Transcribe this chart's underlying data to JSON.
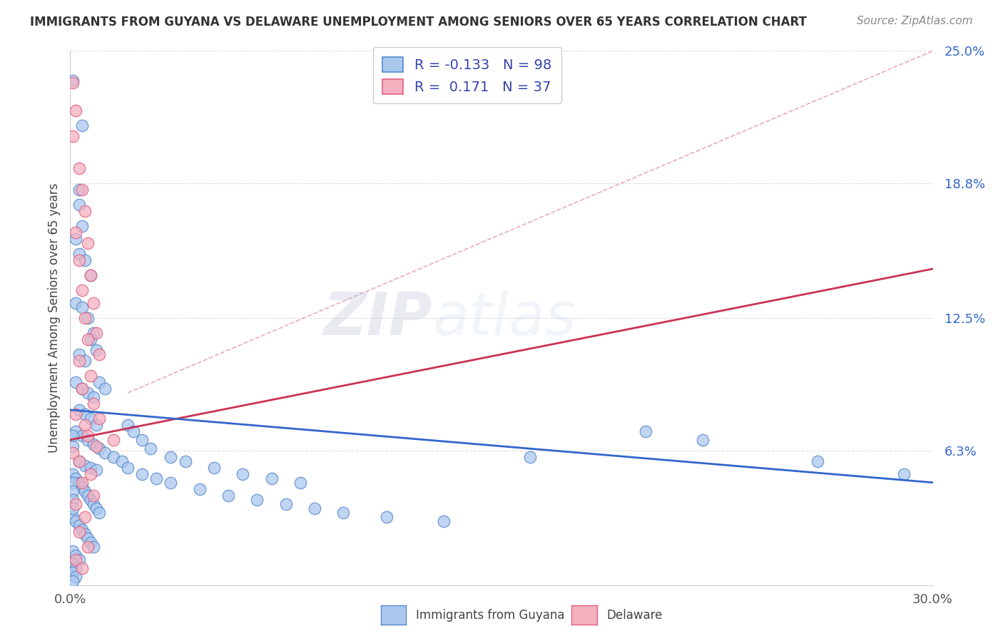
{
  "title": "IMMIGRANTS FROM GUYANA VS DELAWARE UNEMPLOYMENT AMONG SENIORS OVER 65 YEARS CORRELATION CHART",
  "source": "Source: ZipAtlas.com",
  "ylabel": "Unemployment Among Seniors over 65 years",
  "x_label_blue": "Immigrants from Guyana",
  "x_label_pink": "Delaware",
  "xlim": [
    0.0,
    0.3
  ],
  "ylim": [
    0.0,
    0.25
  ],
  "yticks": [
    0.0,
    0.063,
    0.125,
    0.188,
    0.25
  ],
  "ytick_labels": [
    "",
    "6.3%",
    "12.5%",
    "18.8%",
    "25.0%"
  ],
  "xtick_labels": [
    "0.0%",
    "30.0%"
  ],
  "blue_fill": "#aac8ee",
  "blue_edge": "#5588cc",
  "pink_fill": "#f5b0c0",
  "pink_edge": "#e06080",
  "blue_line_color": "#3366cc",
  "pink_line_color": "#cc3355",
  "dash_line_color": "#e08898",
  "watermark_zip": "ZIP",
  "watermark_atlas": "atlas",
  "background_color": "#ffffff",
  "grid_color": "#dddddd",
  "blue_trend_x": [
    0.0,
    0.3
  ],
  "blue_trend_y": [
    0.082,
    0.048
  ],
  "pink_trend_x": [
    0.0,
    0.3
  ],
  "pink_trend_y": [
    0.068,
    0.148
  ],
  "dash_trend_x": [
    0.02,
    0.3
  ],
  "dash_trend_y": [
    0.09,
    0.25
  ],
  "blue_scatter": [
    [
      0.001,
      0.236
    ],
    [
      0.004,
      0.215
    ],
    [
      0.003,
      0.185
    ],
    [
      0.002,
      0.162
    ],
    [
      0.003,
      0.155
    ],
    [
      0.003,
      0.178
    ],
    [
      0.004,
      0.168
    ],
    [
      0.005,
      0.152
    ],
    [
      0.007,
      0.145
    ],
    [
      0.002,
      0.132
    ],
    [
      0.004,
      0.13
    ],
    [
      0.006,
      0.125
    ],
    [
      0.008,
      0.118
    ],
    [
      0.003,
      0.108
    ],
    [
      0.005,
      0.105
    ],
    [
      0.007,
      0.115
    ],
    [
      0.009,
      0.11
    ],
    [
      0.002,
      0.095
    ],
    [
      0.004,
      0.092
    ],
    [
      0.006,
      0.09
    ],
    [
      0.008,
      0.088
    ],
    [
      0.01,
      0.095
    ],
    [
      0.012,
      0.092
    ],
    [
      0.003,
      0.082
    ],
    [
      0.005,
      0.08
    ],
    [
      0.007,
      0.078
    ],
    [
      0.009,
      0.075
    ],
    [
      0.002,
      0.072
    ],
    [
      0.004,
      0.07
    ],
    [
      0.006,
      0.068
    ],
    [
      0.008,
      0.066
    ],
    [
      0.01,
      0.064
    ],
    [
      0.012,
      0.062
    ],
    [
      0.015,
      0.06
    ],
    [
      0.018,
      0.058
    ],
    [
      0.003,
      0.058
    ],
    [
      0.005,
      0.056
    ],
    [
      0.007,
      0.055
    ],
    [
      0.009,
      0.054
    ],
    [
      0.001,
      0.052
    ],
    [
      0.002,
      0.05
    ],
    [
      0.003,
      0.048
    ],
    [
      0.004,
      0.046
    ],
    [
      0.005,
      0.044
    ],
    [
      0.006,
      0.042
    ],
    [
      0.007,
      0.04
    ],
    [
      0.008,
      0.038
    ],
    [
      0.009,
      0.036
    ],
    [
      0.01,
      0.034
    ],
    [
      0.001,
      0.032
    ],
    [
      0.002,
      0.03
    ],
    [
      0.003,
      0.028
    ],
    [
      0.004,
      0.026
    ],
    [
      0.005,
      0.024
    ],
    [
      0.006,
      0.022
    ],
    [
      0.007,
      0.02
    ],
    [
      0.008,
      0.018
    ],
    [
      0.001,
      0.016
    ],
    [
      0.002,
      0.014
    ],
    [
      0.003,
      0.012
    ],
    [
      0.001,
      0.01
    ],
    [
      0.002,
      0.008
    ],
    [
      0.001,
      0.006
    ],
    [
      0.002,
      0.004
    ],
    [
      0.001,
      0.002
    ],
    [
      0.001,
      0.048
    ],
    [
      0.001,
      0.044
    ],
    [
      0.001,
      0.04
    ],
    [
      0.001,
      0.036
    ],
    [
      0.001,
      0.07
    ],
    [
      0.001,
      0.065
    ],
    [
      0.02,
      0.075
    ],
    [
      0.022,
      0.072
    ],
    [
      0.025,
      0.068
    ],
    [
      0.028,
      0.064
    ],
    [
      0.035,
      0.06
    ],
    [
      0.04,
      0.058
    ],
    [
      0.05,
      0.055
    ],
    [
      0.06,
      0.052
    ],
    [
      0.07,
      0.05
    ],
    [
      0.08,
      0.048
    ],
    [
      0.02,
      0.055
    ],
    [
      0.025,
      0.052
    ],
    [
      0.03,
      0.05
    ],
    [
      0.035,
      0.048
    ],
    [
      0.045,
      0.045
    ],
    [
      0.055,
      0.042
    ],
    [
      0.065,
      0.04
    ],
    [
      0.075,
      0.038
    ],
    [
      0.085,
      0.036
    ],
    [
      0.095,
      0.034
    ],
    [
      0.11,
      0.032
    ],
    [
      0.13,
      0.03
    ],
    [
      0.16,
      0.06
    ],
    [
      0.2,
      0.072
    ],
    [
      0.22,
      0.068
    ],
    [
      0.26,
      0.058
    ],
    [
      0.29,
      0.052
    ]
  ],
  "pink_scatter": [
    [
      0.001,
      0.235
    ],
    [
      0.002,
      0.222
    ],
    [
      0.001,
      0.21
    ],
    [
      0.003,
      0.195
    ],
    [
      0.004,
      0.185
    ],
    [
      0.005,
      0.175
    ],
    [
      0.002,
      0.165
    ],
    [
      0.006,
      0.16
    ],
    [
      0.003,
      0.152
    ],
    [
      0.007,
      0.145
    ],
    [
      0.004,
      0.138
    ],
    [
      0.008,
      0.132
    ],
    [
      0.005,
      0.125
    ],
    [
      0.009,
      0.118
    ],
    [
      0.006,
      0.115
    ],
    [
      0.01,
      0.108
    ],
    [
      0.003,
      0.105
    ],
    [
      0.007,
      0.098
    ],
    [
      0.004,
      0.092
    ],
    [
      0.008,
      0.085
    ],
    [
      0.002,
      0.08
    ],
    [
      0.005,
      0.075
    ],
    [
      0.006,
      0.07
    ],
    [
      0.009,
      0.065
    ],
    [
      0.003,
      0.058
    ],
    [
      0.007,
      0.052
    ],
    [
      0.004,
      0.048
    ],
    [
      0.008,
      0.042
    ],
    [
      0.002,
      0.038
    ],
    [
      0.005,
      0.032
    ],
    [
      0.003,
      0.025
    ],
    [
      0.006,
      0.018
    ],
    [
      0.002,
      0.012
    ],
    [
      0.004,
      0.008
    ],
    [
      0.001,
      0.062
    ],
    [
      0.01,
      0.078
    ],
    [
      0.015,
      0.068
    ]
  ]
}
